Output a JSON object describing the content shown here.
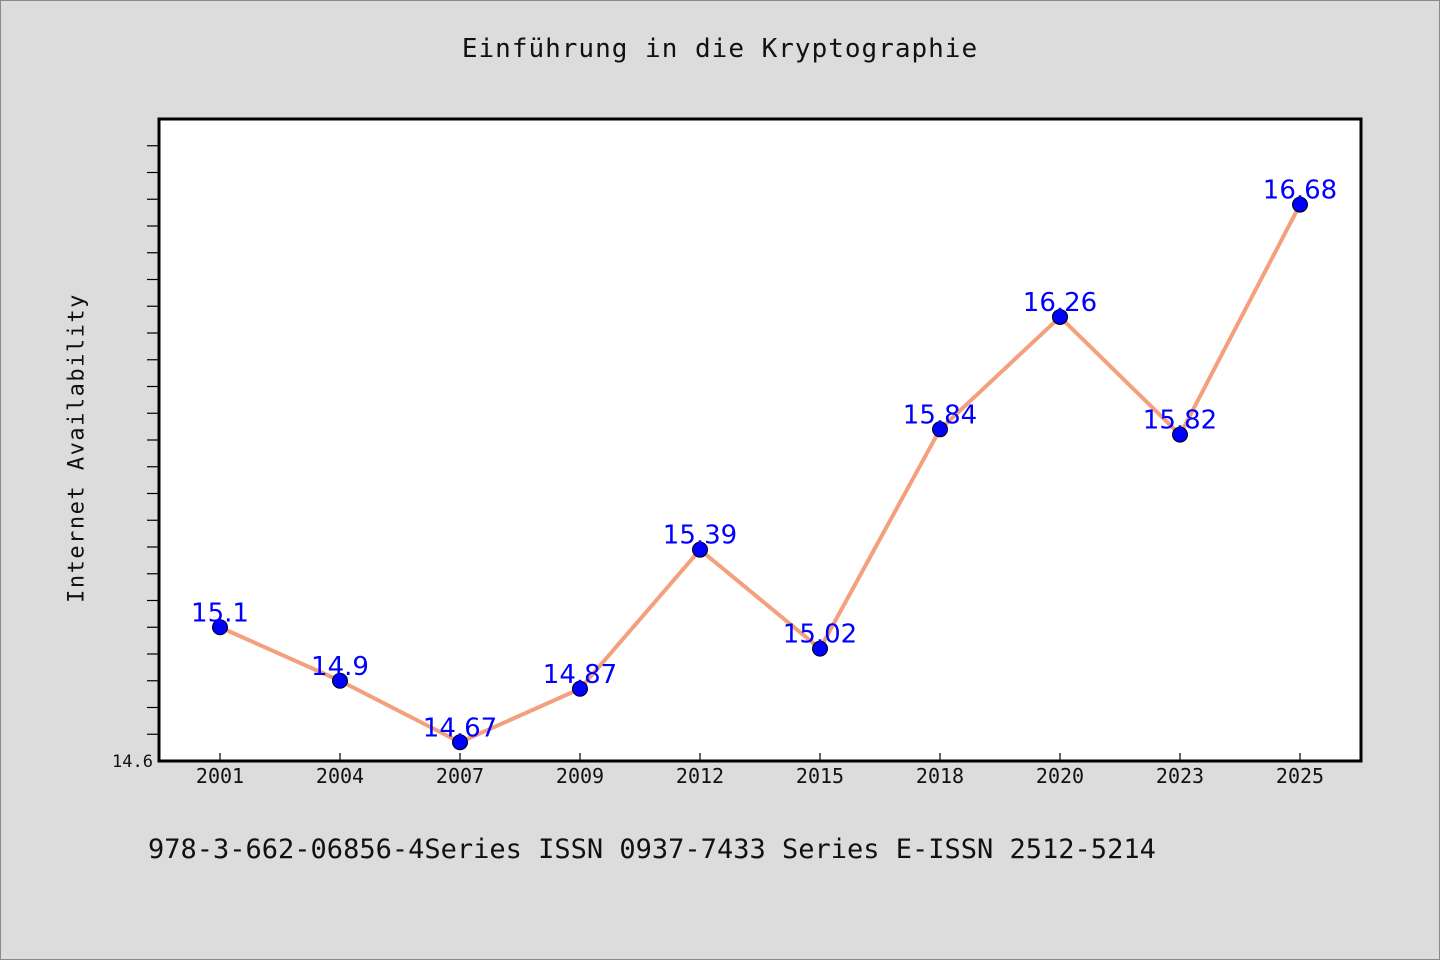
{
  "title": "Einführung in die Kryptographie",
  "footer": "978-3-662-06856-4Series ISSN 0937-7433 Series E-ISSN 2512-5214",
  "colors": {
    "background": "#dcdcdc",
    "plot_background": "#ffffff",
    "line": "#f4a07e",
    "marker": "#0000ff",
    "data_label": "#0000ff"
  },
  "chart_data": {
    "type": "line",
    "title": "Einführung in die Kryptographie",
    "xlabel": "",
    "ylabel": "Internet Availability",
    "categories": [
      "2001",
      "2004",
      "2007",
      "2009",
      "2012",
      "2015",
      "2018",
      "2020",
      "2023",
      "2025"
    ],
    "series": [
      {
        "values": [
          15.1,
          14.9,
          14.67,
          14.87,
          15.39,
          15.02,
          15.84,
          16.26,
          15.82,
          16.68
        ]
      }
    ],
    "data_labels": [
      "15.1",
      "14.9",
      "14.67",
      "14.87",
      "15.39",
      "15.02",
      "15.84",
      "16.26",
      "15.82",
      "16.68"
    ],
    "ylim": [
      14.6,
      17.0
    ],
    "y_tick_labels": [
      "14.6"
    ],
    "y_minor_tick_step": 0.1,
    "grid": false,
    "legend": "none"
  }
}
